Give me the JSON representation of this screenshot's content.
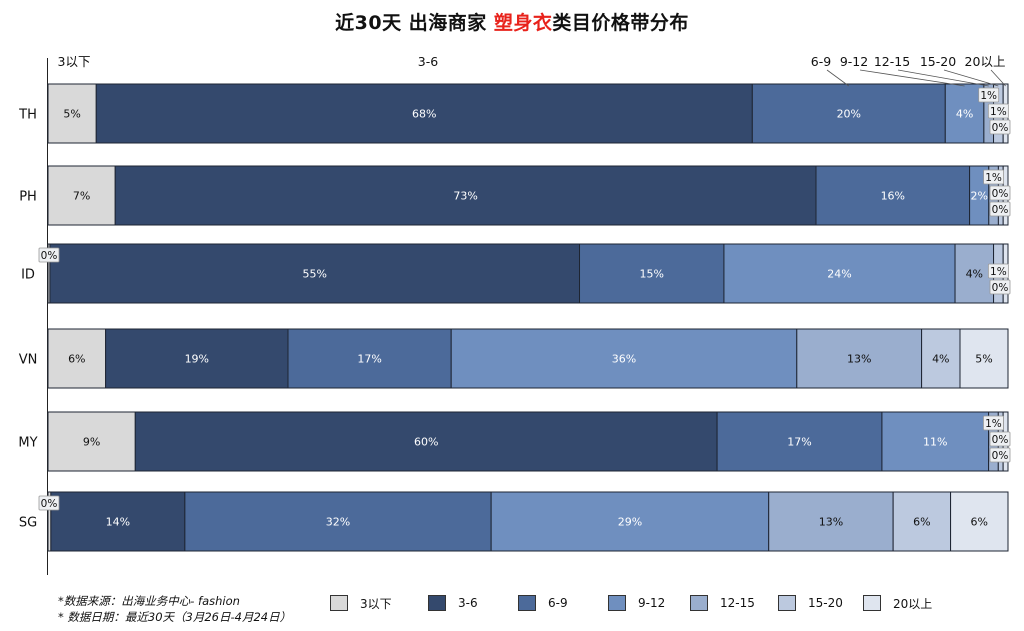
{
  "title": {
    "before": "近30天 出海商家 ",
    "highlight": "塑身衣",
    "after": "类目价格带分布"
  },
  "chart_data": {
    "type": "bar",
    "orientation": "horizontal",
    "stacked": true,
    "percent": true,
    "categories": [
      "TH",
      "PH",
      "ID",
      "VN",
      "MY",
      "SG"
    ],
    "series": [
      {
        "name": "3以下",
        "color": "#d9d9d9",
        "values": [
          5.0,
          7.0,
          0.2,
          6.0,
          9.0,
          0.3
        ],
        "labels": [
          "5%",
          "7%",
          "0%",
          "6%",
          "9%",
          "0%"
        ]
      },
      {
        "name": "3-6",
        "color": "#34496d",
        "values": [
          68.0,
          73.0,
          55.0,
          19.0,
          60.0,
          14.0
        ],
        "labels": [
          "68%",
          "73%",
          "55%",
          "19%",
          "60%",
          "14%"
        ]
      },
      {
        "name": "6-9",
        "color": "#4c6a9a",
        "values": [
          20.0,
          16.0,
          15.0,
          17.0,
          17.0,
          32.0
        ],
        "labels": [
          "20%",
          "16%",
          "15%",
          "17%",
          "17%",
          "32%"
        ]
      },
      {
        "name": "9-12",
        "color": "#6f8fbf",
        "values": [
          4.0,
          2.0,
          24.0,
          36.0,
          11.0,
          29.0
        ],
        "labels": [
          "4%",
          "2%",
          "24%",
          "36%",
          "11%",
          "29%"
        ]
      },
      {
        "name": "12-15",
        "color": "#9aaece",
        "values": [
          1.0,
          1.0,
          4.0,
          13.0,
          1.0,
          13.0
        ],
        "labels": [
          "1%",
          "1%",
          "4%",
          "13%",
          "1%",
          "13%"
        ]
      },
      {
        "name": "15-20",
        "color": "#bcc9df",
        "values": [
          1.0,
          0.5,
          1.0,
          4.0,
          0.5,
          6.0
        ],
        "labels": [
          "1%",
          "0%",
          "1%",
          "4%",
          "0%",
          "6%"
        ]
      },
      {
        "name": "20以上",
        "color": "#dfe5ef",
        "values": [
          0.5,
          0.5,
          0.5,
          5.0,
          0.5,
          6.0
        ],
        "labels": [
          "0%",
          "0%",
          "0%",
          "5%",
          "0%",
          "6%"
        ]
      }
    ],
    "xlim": [
      0,
      100
    ],
    "header_labels": [
      "3以下",
      "3-6",
      "6-9",
      "9-12",
      "12-15",
      "15-20",
      "20以上"
    ]
  },
  "footnote": {
    "source": "*数据来源：出海业务中心- fashion",
    "date": "* 数据日期：最近30天（3月26日-4月24日）"
  }
}
